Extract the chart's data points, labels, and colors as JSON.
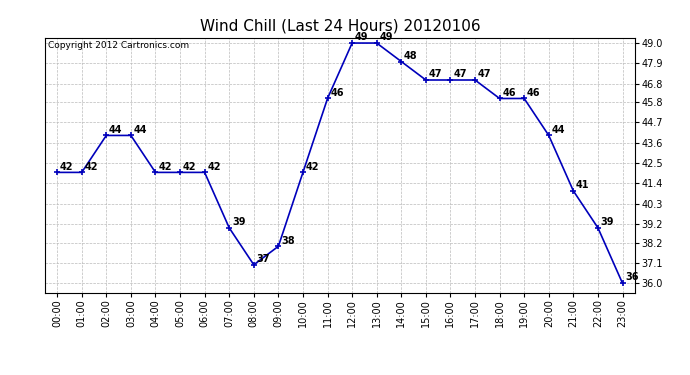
{
  "title": "Wind Chill (Last 24 Hours) 20120106",
  "copyright": "Copyright 2012 Cartronics.com",
  "times": [
    "00:00",
    "01:00",
    "02:00",
    "03:00",
    "04:00",
    "05:00",
    "06:00",
    "07:00",
    "08:00",
    "09:00",
    "10:00",
    "11:00",
    "12:00",
    "13:00",
    "14:00",
    "15:00",
    "16:00",
    "17:00",
    "18:00",
    "19:00",
    "20:00",
    "21:00",
    "22:00",
    "23:00"
  ],
  "values": [
    42,
    42,
    44,
    44,
    42,
    42,
    42,
    39,
    37,
    38,
    42,
    46,
    49,
    49,
    48,
    47,
    47,
    47,
    46,
    46,
    44,
    41,
    39,
    36
  ],
  "line_color": "#0000bb",
  "marker_color": "#0000bb",
  "bg_color": "#ffffff",
  "plot_bg_color": "#ffffff",
  "grid_color": "#bbbbbb",
  "title_fontsize": 11,
  "label_fontsize": 7,
  "tick_fontsize": 7,
  "copyright_fontsize": 6.5,
  "ylim_min": 36.0,
  "ylim_max": 49.0,
  "yticks": [
    36.0,
    37.1,
    38.2,
    39.2,
    40.3,
    41.4,
    42.5,
    43.6,
    44.7,
    45.8,
    46.8,
    47.9,
    49.0
  ]
}
